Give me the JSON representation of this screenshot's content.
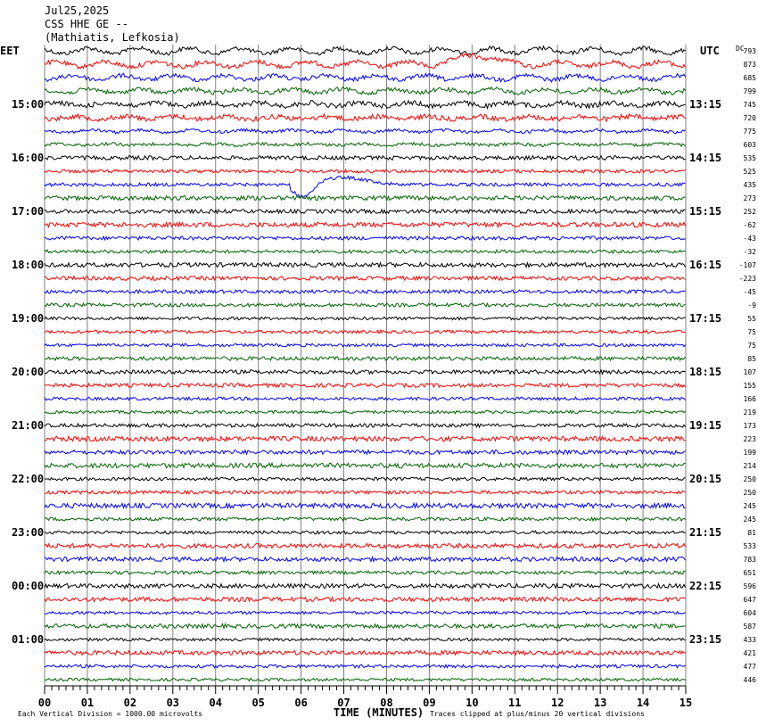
{
  "header": {
    "date": "Jul25,2025",
    "station": "CSS HHE GE --",
    "location": "(Mathiatis, Lefkosia)"
  },
  "left_axis_label": "EET",
  "right_axis_label": "UTC",
  "dc_label": "DC",
  "x_axis_title": "TIME (MINUTES)",
  "footer": {
    "scale": "Each Vertical Division = 1000.00 microvolts",
    "clip": "Traces clipped at plus/minus 20 vertical divisions"
  },
  "colors": {
    "cycle": [
      "#000000",
      "#ff0000",
      "#0000ff",
      "#006400"
    ],
    "grid": "#808080",
    "text": "#000000"
  },
  "chart_data": {
    "type": "line",
    "title": "Jul25,2025 CSS HHE GE -- (Mathiatis, Lefkosia)",
    "xlabel": "TIME (MINUTES)",
    "xlim": [
      0,
      15
    ],
    "x_ticks": [
      "00",
      "01",
      "02",
      "03",
      "04",
      "05",
      "06",
      "07",
      "08",
      "09",
      "10",
      "11",
      "12",
      "13",
      "14",
      "15"
    ],
    "left_hour_labels": [
      "15:00",
      "16:00",
      "17:00",
      "18:00",
      "19:00",
      "20:00",
      "21:00",
      "22:00",
      "23:00",
      "00:00",
      "01:00"
    ],
    "right_hour_labels": [
      "13:15",
      "14:15",
      "15:15",
      "16:15",
      "17:15",
      "18:15",
      "19:15",
      "20:15",
      "21:15",
      "22:15",
      "23:15"
    ],
    "dc_offsets": [
      793,
      873,
      685,
      799,
      745,
      720,
      775,
      603,
      535,
      525,
      435,
      273,
      252,
      -62,
      -43,
      -32,
      -107,
      -223,
      -45,
      -9,
      55,
      75,
      75,
      85,
      107,
      155,
      166,
      219,
      173,
      223,
      199,
      214,
      250,
      250,
      245,
      245,
      81,
      533,
      783,
      651,
      596,
      647,
      604,
      587,
      433,
      421,
      477,
      446
    ],
    "trace_count": 48,
    "traces_per_hour": 4,
    "trace_colors": [
      "black",
      "red",
      "blue",
      "green"
    ],
    "grid": true
  }
}
